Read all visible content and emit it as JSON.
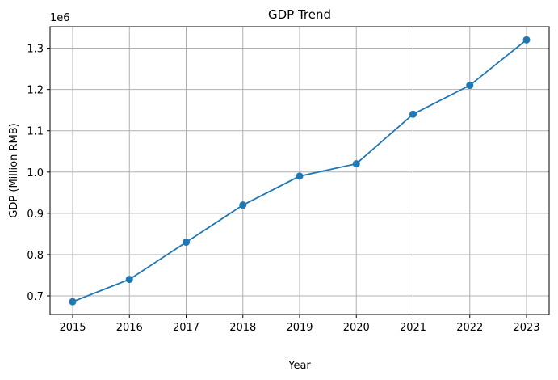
{
  "chart_data": {
    "type": "line",
    "title": "GDP Trend",
    "xlabel": "Year",
    "ylabel": "GDP (Million RMB)",
    "y_scale_label": "1e6",
    "x": [
      "2015",
      "2016",
      "2017",
      "2018",
      "2019",
      "2020",
      "2021",
      "2022",
      "2023"
    ],
    "series": [
      {
        "values": [
          686000,
          740000,
          830000,
          920000,
          990000,
          1020000,
          1140000,
          1210000,
          1320000
        ],
        "color": "#1f77b4",
        "marker": "circle"
      }
    ],
    "yticks": [
      0.7,
      0.8,
      0.9,
      1.0,
      1.1,
      1.2,
      1.3
    ],
    "ytick_labels": [
      "0.7",
      "0.8",
      "0.9",
      "1.0",
      "1.1",
      "1.2",
      "1.3"
    ],
    "ylim": [
      655000,
      1352000
    ],
    "grid": true
  }
}
